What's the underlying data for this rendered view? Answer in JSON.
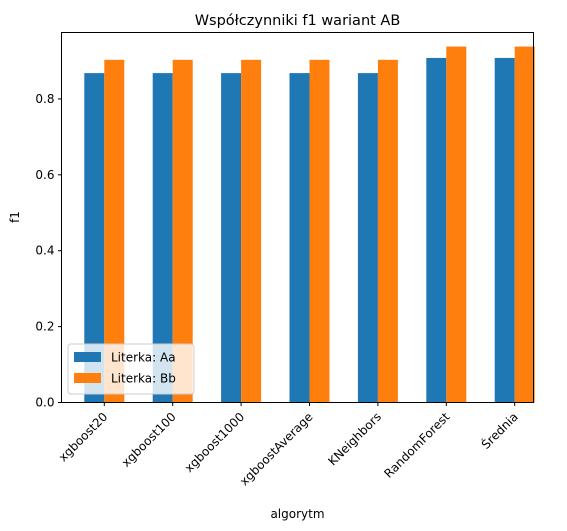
{
  "chart_data": {
    "type": "bar",
    "title": "Współczynniki f1 wariant AB",
    "xlabel": "algorytm",
    "ylabel": "f1",
    "categories": [
      "xgboost20",
      "xgboost100",
      "xgboost1000",
      "xgboostAverage",
      "KNeighbors",
      "RandomForest",
      "Średnia"
    ],
    "series": [
      {
        "name": "Literka: Aa",
        "color": "#1f77b4",
        "values": [
          0.868,
          0.868,
          0.868,
          0.868,
          0.868,
          0.908,
          0.908
        ]
      },
      {
        "name": "Literka: Bb",
        "color": "#ff7f0e",
        "values": [
          0.903,
          0.903,
          0.903,
          0.903,
          0.903,
          0.938,
          0.938
        ]
      }
    ],
    "ylim": [
      0,
      0.975
    ],
    "yticks": [
      "0.0",
      "0.2",
      "0.4",
      "0.6",
      "0.8"
    ],
    "ytick_values": [
      0,
      0.2,
      0.4,
      0.6,
      0.8
    ],
    "grid": false,
    "legend_loc": "lower-left"
  }
}
